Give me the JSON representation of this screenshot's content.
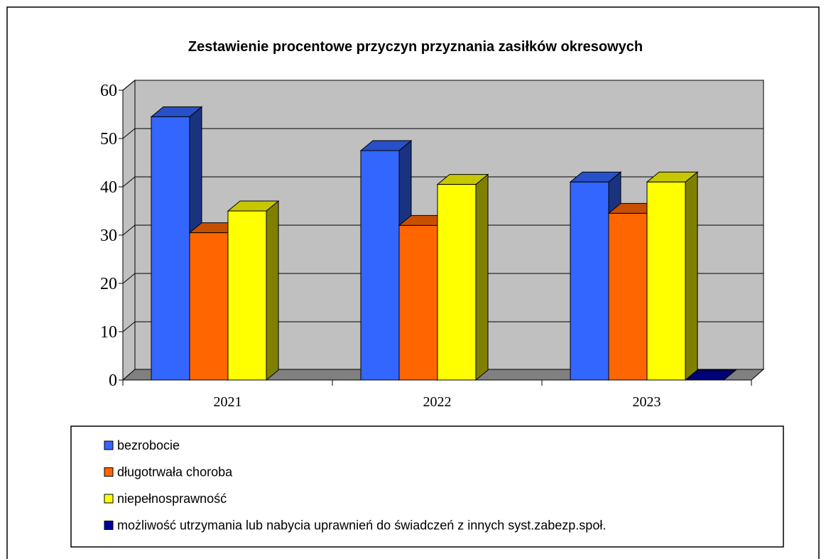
{
  "chart_data": {
    "type": "bar3d",
    "title": "Zestawienie procentowe przyczyn przyznania zasiłków okresowych",
    "categories": [
      "2021",
      "2022",
      "2023"
    ],
    "series": [
      {
        "name": "bezrobocie",
        "color": "#3366ff",
        "values": [
          54.5,
          47.5,
          41
        ]
      },
      {
        "name": "długotrwała choroba",
        "color": "#ff6600",
        "values": [
          30.5,
          32,
          34.5
        ]
      },
      {
        "name": "niepełnosprawność",
        "color": "#ffff00",
        "values": [
          35,
          40.5,
          41
        ]
      },
      {
        "name": "możliwość utrzymania lub nabycia uprawnień do świadczeń z innych syst.zabezp.społ.",
        "color": "#000099",
        "values": [
          null,
          null,
          0
        ]
      }
    ],
    "ylim": [
      0,
      60
    ],
    "yticks": [
      0,
      10,
      20,
      30,
      40,
      50,
      60
    ],
    "grid": true
  }
}
